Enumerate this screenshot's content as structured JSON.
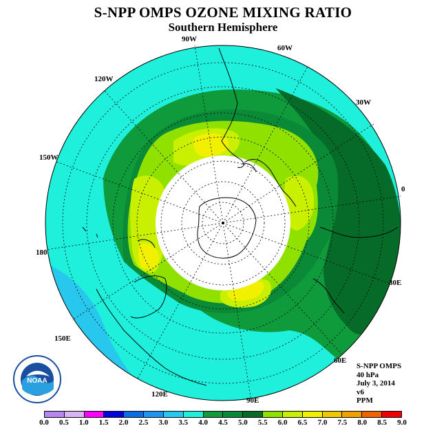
{
  "title": "S-NPP OMPS OZONE MIXING RATIO",
  "subtitle": "Southern Hemisphere",
  "longitude_labels": {
    "w90": "90W",
    "w60": "60W",
    "w30": "30W",
    "e0": "0",
    "e30": "30E",
    "e60": "60E",
    "e90": "90E",
    "e120": "120E",
    "e150": "150E",
    "d180": "180",
    "w150": "150W",
    "w120": "120W"
  },
  "info": {
    "instrument": "S-NPP OMPS",
    "level": "40 hPa",
    "date": "July 3, 2014",
    "version": "v6",
    "units": "PPM"
  },
  "logo": {
    "text": "NOAA",
    "icon": "noaa-logo"
  },
  "colorbar": {
    "ticks": [
      "0.0",
      "0.5",
      "1.0",
      "1.5",
      "2.0",
      "2.5",
      "3.0",
      "3.5",
      "4.0",
      "4.5",
      "5.0",
      "5.5",
      "6.0",
      "6.5",
      "7.0",
      "7.5",
      "8.0",
      "8.5",
      "9.0"
    ],
    "colors": [
      "#b787f0",
      "#d9b3f5",
      "#ff00ff",
      "#0000e0",
      "#0a6de6",
      "#1e96f0",
      "#28c8ee",
      "#1ef0dc",
      "#0f9a3c",
      "#0a8a36",
      "#066a28",
      "#90e000",
      "#c8f000",
      "#f0f000",
      "#f0c800",
      "#f0a000",
      "#f06400",
      "#f00000",
      "#8b5a3c"
    ]
  }
}
